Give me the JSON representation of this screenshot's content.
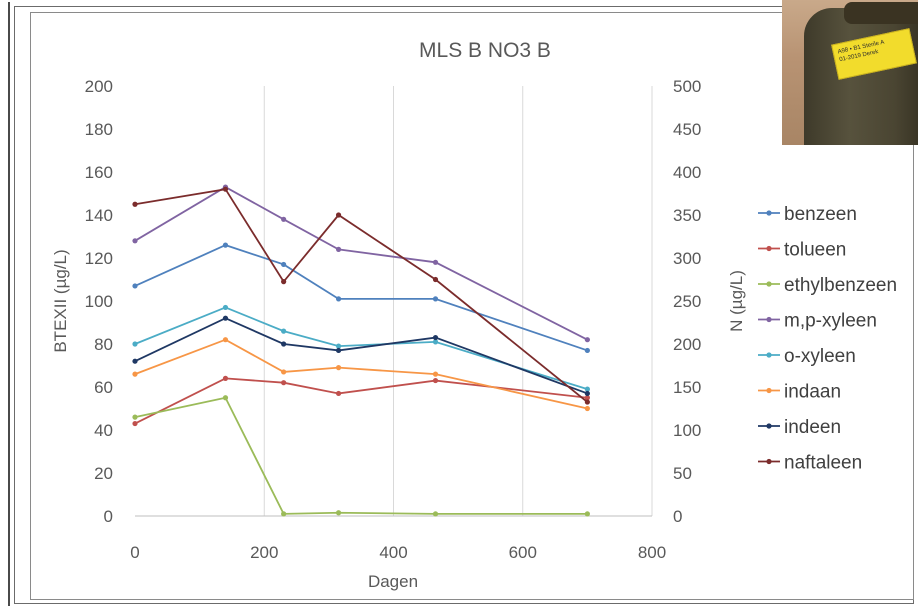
{
  "chart_data": {
    "type": "line",
    "title": "MLS B NO3 B",
    "xlabel": "Dagen",
    "ylabel": "BTEXII (µg/L)",
    "y2label": "N (µg/L)",
    "xlim": [
      0,
      800
    ],
    "ylim": [
      0,
      200
    ],
    "y2lim": [
      0,
      500
    ],
    "x_ticks": [
      "0",
      "200",
      "400",
      "600",
      "800"
    ],
    "y_ticks": [
      "0",
      "20",
      "40",
      "60",
      "80",
      "100",
      "120",
      "140",
      "160",
      "180",
      "200"
    ],
    "y2_ticks": [
      "0",
      "50",
      "100",
      "150",
      "200",
      "250",
      "300",
      "350",
      "400",
      "450",
      "500"
    ],
    "grid": "vertical",
    "legend_position": "right",
    "x": [
      0,
      140,
      230,
      315,
      465,
      700
    ],
    "series": [
      {
        "name": "benzeen",
        "color": "#4f81bd",
        "values": [
          107,
          126,
          117,
          101,
          101,
          77
        ]
      },
      {
        "name": "tolueen",
        "color": "#c0504d",
        "values": [
          43,
          64,
          62,
          57,
          63,
          55
        ]
      },
      {
        "name": "ethylbenzeen",
        "color": "#9bbb59",
        "values": [
          46,
          55,
          1,
          1.5,
          1,
          1
        ]
      },
      {
        "name": "m,p-xyleen",
        "color": "#8064a2",
        "values": [
          128,
          153,
          138,
          124,
          118,
          82
        ]
      },
      {
        "name": "o-xyleen",
        "color": "#4bacc6",
        "values": [
          80,
          97,
          86,
          79,
          81,
          59
        ]
      },
      {
        "name": "indaan",
        "color": "#f79646",
        "values": [
          66,
          82,
          67,
          69,
          66,
          50
        ]
      },
      {
        "name": "indeen",
        "color": "#1f3864",
        "values": [
          72,
          92,
          80,
          77,
          83,
          57
        ]
      },
      {
        "name": "naftaleen",
        "color": "#7b2c2c",
        "values": [
          145,
          152,
          109,
          140,
          110,
          53
        ]
      }
    ]
  },
  "photo": {
    "label_text": "A98 • B1 Sterile A\n01-2019 Derek"
  }
}
